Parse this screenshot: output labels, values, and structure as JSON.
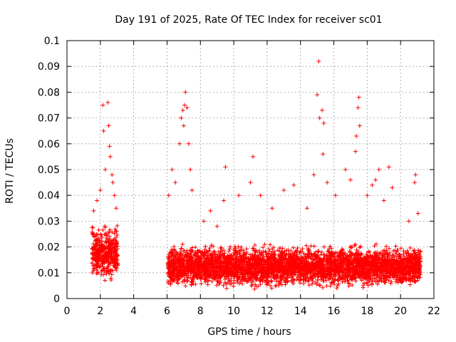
{
  "chart_data": {
    "type": "scatter",
    "title": "Day 191 of 2025, Rate Of TEC Index for receiver sc01",
    "xlabel": "GPS time / hours",
    "ylabel": "ROTI / TECUs",
    "xlim": [
      0,
      22
    ],
    "ylim": [
      0,
      0.1
    ],
    "xticks": [
      "0",
      "2",
      "4",
      "6",
      "8",
      "10",
      "12",
      "14",
      "16",
      "18",
      "20",
      "22"
    ],
    "yticks": [
      "0",
      "0.01",
      "0.02",
      "0.03",
      "0.04",
      "0.05",
      "0.06",
      "0.07",
      "0.08",
      "0.09",
      "0.1"
    ],
    "grid": true,
    "marker": "plus",
    "color": "#ff0000",
    "series": [
      {
        "name": "ROTI sc01",
        "clusters": [
          {
            "x_range": [
              1.5,
              3.05
            ],
            "y_range": [
              0.006,
              0.03
            ]
          },
          {
            "x_range": [
              6.05,
              21.2
            ],
            "y_range": [
              0.003,
              0.022
            ]
          }
        ],
        "points": [
          [
            1.6,
            0.034
          ],
          [
            1.8,
            0.038
          ],
          [
            2.0,
            0.042
          ],
          [
            2.15,
            0.075
          ],
          [
            2.2,
            0.065
          ],
          [
            2.3,
            0.05
          ],
          [
            2.45,
            0.076
          ],
          [
            2.5,
            0.067
          ],
          [
            2.55,
            0.059
          ],
          [
            2.6,
            0.055
          ],
          [
            2.7,
            0.048
          ],
          [
            2.75,
            0.045
          ],
          [
            2.85,
            0.04
          ],
          [
            2.95,
            0.035
          ],
          [
            6.1,
            0.04
          ],
          [
            6.3,
            0.05
          ],
          [
            6.5,
            0.045
          ],
          [
            6.75,
            0.06
          ],
          [
            6.85,
            0.07
          ],
          [
            6.95,
            0.073
          ],
          [
            7.0,
            0.067
          ],
          [
            7.05,
            0.075
          ],
          [
            7.1,
            0.08
          ],
          [
            7.2,
            0.074
          ],
          [
            7.3,
            0.06
          ],
          [
            7.4,
            0.05
          ],
          [
            7.5,
            0.042
          ],
          [
            8.2,
            0.03
          ],
          [
            8.6,
            0.034
          ],
          [
            9.0,
            0.028
          ],
          [
            9.4,
            0.038
          ],
          [
            9.5,
            0.051
          ],
          [
            10.3,
            0.04
          ],
          [
            11.0,
            0.045
          ],
          [
            11.15,
            0.055
          ],
          [
            11.6,
            0.04
          ],
          [
            12.3,
            0.035
          ],
          [
            13.0,
            0.042
          ],
          [
            13.6,
            0.044
          ],
          [
            14.4,
            0.035
          ],
          [
            14.8,
            0.048
          ],
          [
            15.0,
            0.079
          ],
          [
            15.1,
            0.092
          ],
          [
            15.15,
            0.07
          ],
          [
            15.3,
            0.073
          ],
          [
            15.35,
            0.056
          ],
          [
            15.4,
            0.068
          ],
          [
            15.6,
            0.045
          ],
          [
            16.1,
            0.04
          ],
          [
            16.7,
            0.05
          ],
          [
            17.0,
            0.046
          ],
          [
            17.3,
            0.057
          ],
          [
            17.35,
            0.063
          ],
          [
            17.45,
            0.074
          ],
          [
            17.5,
            0.078
          ],
          [
            17.55,
            0.067
          ],
          [
            18.0,
            0.04
          ],
          [
            18.3,
            0.044
          ],
          [
            18.5,
            0.046
          ],
          [
            18.7,
            0.05
          ],
          [
            19.0,
            0.038
          ],
          [
            19.3,
            0.051
          ],
          [
            19.5,
            0.043
          ],
          [
            20.5,
            0.03
          ],
          [
            20.85,
            0.045
          ],
          [
            20.9,
            0.048
          ],
          [
            21.05,
            0.033
          ]
        ]
      }
    ]
  }
}
